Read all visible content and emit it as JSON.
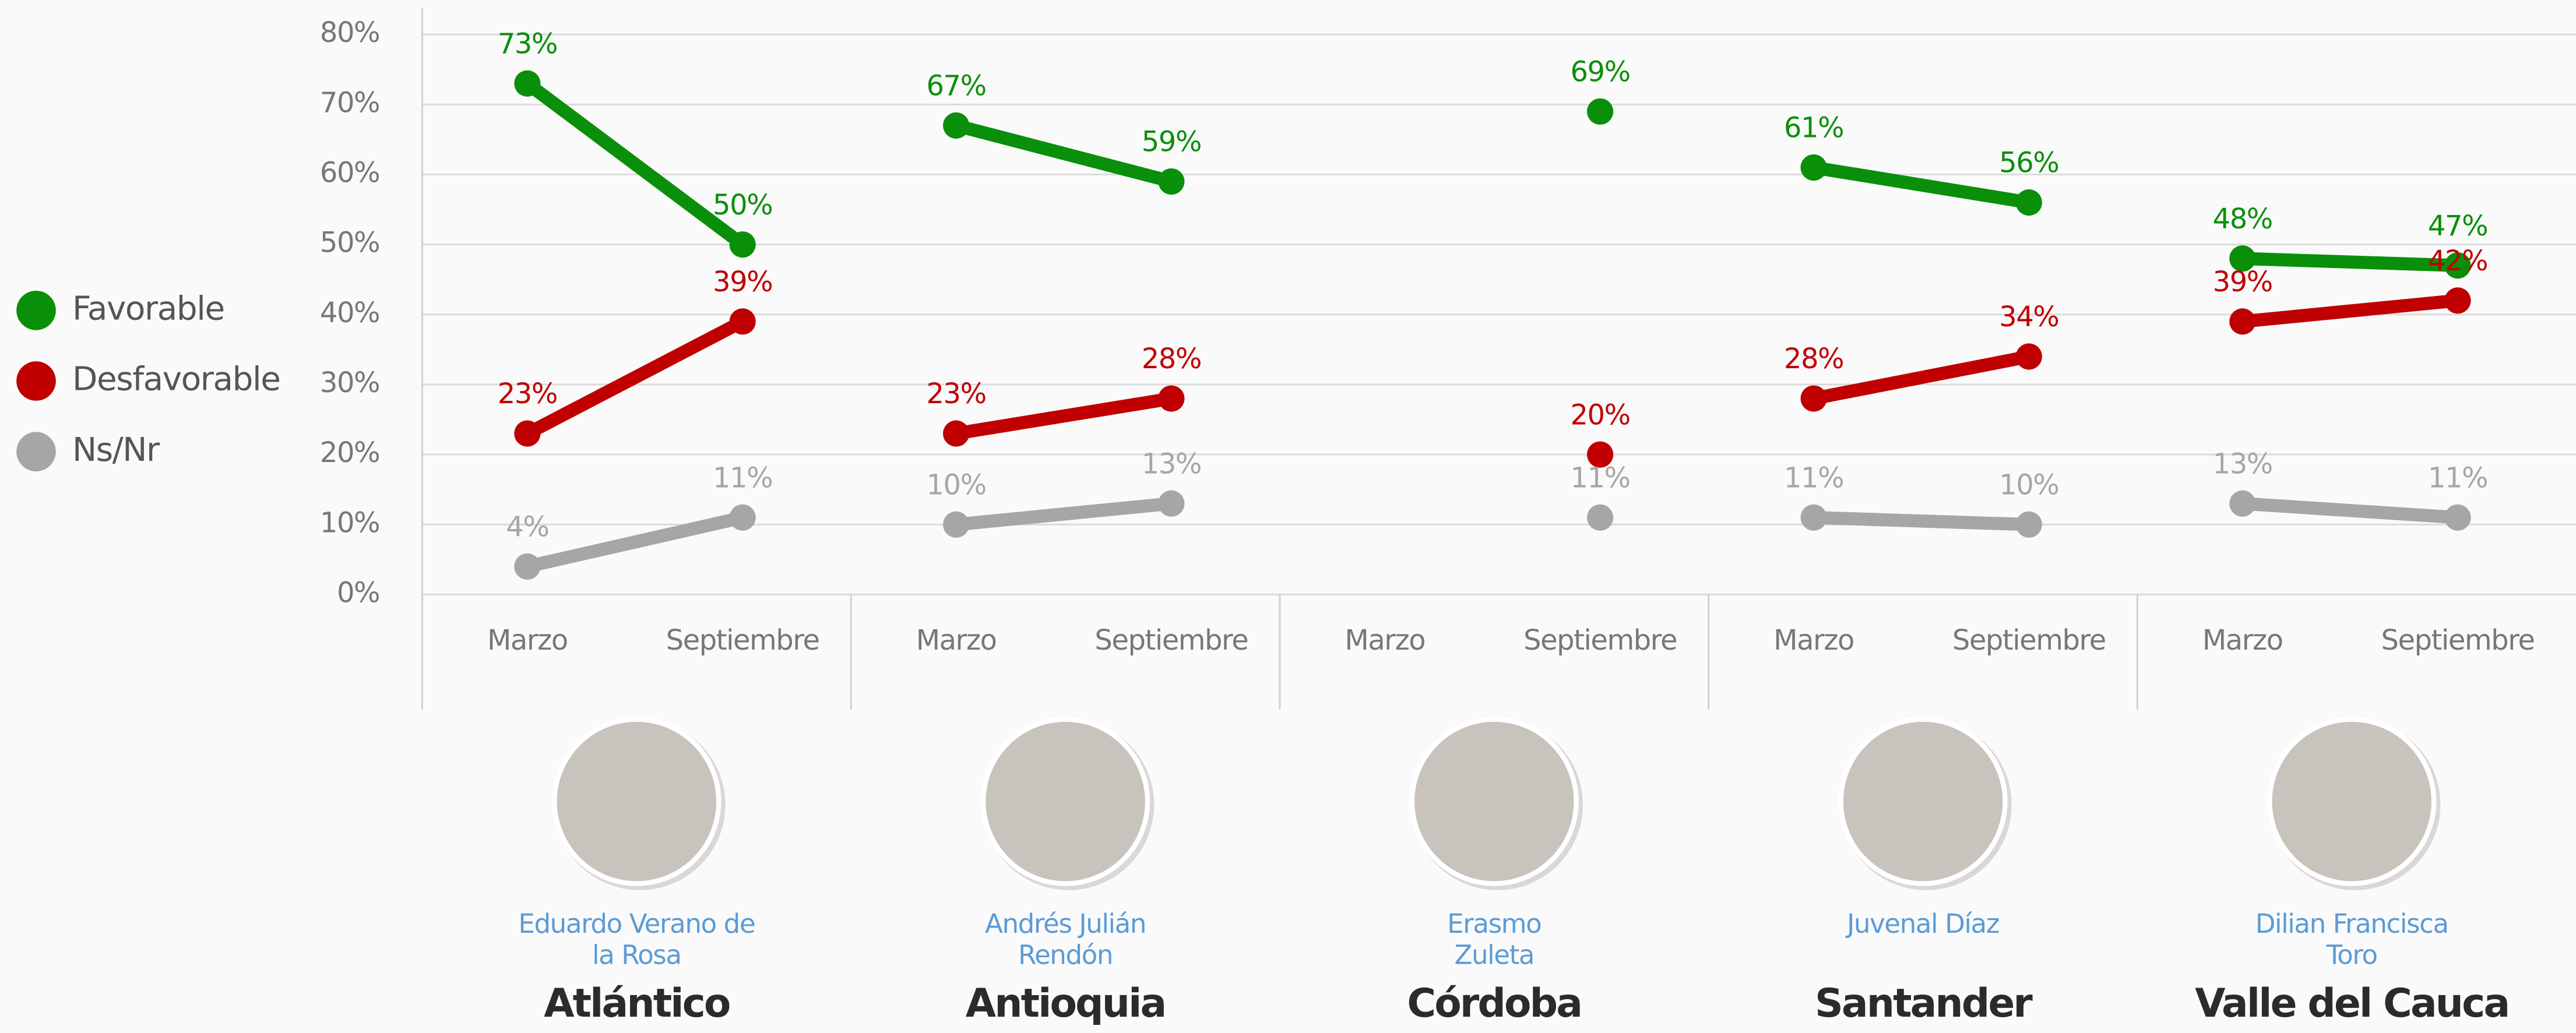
{
  "chart_data": {
    "type": "line",
    "legend_position": "left",
    "grid": true,
    "groups": [
      {
        "region": "Atlántico",
        "person": "Eduardo Verano de la Rosa"
      },
      {
        "region": "Antioquia",
        "person": "Andrés Julián Rendón"
      },
      {
        "region": "Córdoba",
        "person": "Erasmo Zuleta"
      },
      {
        "region": "Santander",
        "person": "Juvenal Díaz"
      },
      {
        "region": "Valle del Cauca",
        "person": "Dilian Francisca Toro"
      }
    ],
    "categories": [
      "Marzo",
      "Septiembre",
      "Marzo",
      "Septiembre",
      "Marzo",
      "Septiembre",
      "Marzo",
      "Septiembre",
      "Marzo",
      "Septiembre"
    ],
    "series": [
      {
        "name": "Favorable",
        "color": "#0a8f0a",
        "values": [
          73,
          50,
          67,
          59,
          null,
          69,
          61,
          56,
          48,
          47
        ],
        "value_labels": [
          "73%",
          "50%",
          "67%",
          "59%",
          null,
          "69%",
          "61%",
          "56%",
          "48%",
          "47%"
        ]
      },
      {
        "name": "Desfavorable",
        "color": "#c00000",
        "values": [
          23,
          39,
          23,
          28,
          null,
          20,
          28,
          34,
          39,
          42
        ],
        "value_labels": [
          "23%",
          "39%",
          "23%",
          "28%",
          null,
          "20%",
          "28%",
          "34%",
          "39%",
          "42%"
        ]
      },
      {
        "name": "Ns/Nr",
        "color": "#a6a6a6",
        "values": [
          4,
          11,
          10,
          13,
          null,
          11,
          11,
          10,
          13,
          11
        ],
        "value_labels": [
          "4%",
          "11%",
          "10%",
          "13%",
          null,
          "11%",
          "11%",
          "10%",
          "13%",
          "11%"
        ]
      }
    ],
    "ylim": [
      0,
      80
    ],
    "yticks": [
      {
        "value": 0,
        "label": "0%"
      },
      {
        "value": 10,
        "label": "10%"
      },
      {
        "value": 20,
        "label": "20%"
      },
      {
        "value": 30,
        "label": "30%"
      },
      {
        "value": 40,
        "label": "40%"
      },
      {
        "value": 50,
        "label": "50%"
      },
      {
        "value": 60,
        "label": "60%"
      },
      {
        "value": 70,
        "label": "70%"
      },
      {
        "value": 80,
        "label": "80%"
      }
    ]
  }
}
